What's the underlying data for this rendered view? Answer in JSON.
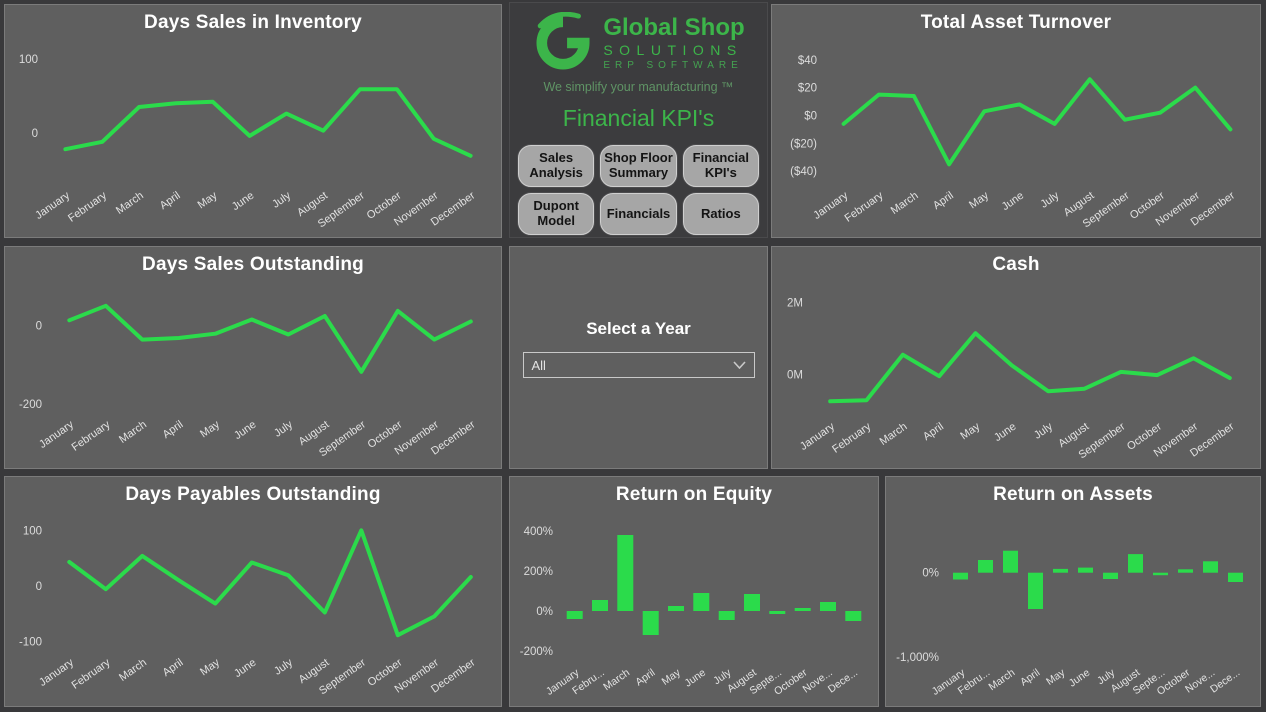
{
  "brand": {
    "monogram": "G",
    "name_line1": "Global Shop",
    "name_line2": "SOLUTIONS",
    "name_line3": "ERP SOFTWARE",
    "tagline": "We simplify your manufacturing ™",
    "green": "#3cb54a"
  },
  "page_title": "Financial KPI's",
  "nav": {
    "buttons": [
      "Sales Analysis",
      "Shop Floor Summary",
      "Financial KPI's",
      "Dupont Model",
      "Financials",
      "Ratios"
    ]
  },
  "filter": {
    "title": "Select a Year",
    "value": "All"
  },
  "chart_data": [
    {
      "id": "dsi",
      "type": "line",
      "title": "Days Sales in Inventory",
      "categories": [
        "January",
        "February",
        "March",
        "April",
        "May",
        "June",
        "July",
        "August",
        "September",
        "October",
        "November",
        "December"
      ],
      "values": [
        -22,
        -12,
        35,
        40,
        42,
        -4,
        26,
        3,
        59,
        59,
        -8,
        -31
      ],
      "y_ticks": [
        {
          "value": 100,
          "label": "100"
        },
        {
          "value": 0,
          "label": "0"
        }
      ],
      "ylim": [
        -65,
        112
      ],
      "grid": false,
      "color": "#2bdb4b"
    },
    {
      "id": "tat",
      "type": "line",
      "title": "Total Asset Turnover",
      "categories": [
        "January",
        "February",
        "March",
        "April",
        "May",
        "June",
        "July",
        "August",
        "September",
        "October",
        "November",
        "December"
      ],
      "values": [
        -6,
        15,
        14,
        -35,
        3,
        8,
        -6,
        26,
        -3,
        2,
        20,
        -10
      ],
      "y_ticks": [
        {
          "value": 40,
          "label": "$40"
        },
        {
          "value": 20,
          "label": "$20"
        },
        {
          "value": 0,
          "label": "$0"
        },
        {
          "value": -20,
          "label": "($20)"
        },
        {
          "value": -40,
          "label": "($40)"
        }
      ],
      "ylim": [
        -47,
        47
      ],
      "grid": false,
      "color": "#2bdb4b"
    },
    {
      "id": "dso",
      "type": "line",
      "title": "Days Sales Outstanding",
      "categories": [
        "January",
        "February",
        "March",
        "April",
        "May",
        "June",
        "July",
        "August",
        "September",
        "October",
        "November",
        "December"
      ],
      "values": [
        13,
        50,
        -36,
        -32,
        -21,
        15,
        -23,
        24,
        -118,
        37,
        -36,
        10
      ],
      "y_ticks": [
        {
          "value": 0,
          "label": "0"
        },
        {
          "value": -200,
          "label": "-200"
        }
      ],
      "ylim": [
        -215,
        85
      ],
      "grid": false,
      "color": "#2bdb4b"
    },
    {
      "id": "cash",
      "type": "line",
      "title": "Cash",
      "categories": [
        "January",
        "February",
        "March",
        "April",
        "May",
        "June",
        "July",
        "August",
        "September",
        "October",
        "November",
        "December"
      ],
      "values": [
        -0.75,
        -0.72,
        0.55,
        -0.05,
        1.15,
        0.25,
        -0.47,
        -0.4,
        0.07,
        -0.02,
        0.45,
        -0.1
      ],
      "y_ticks": [
        {
          "value": 2,
          "label": "2M"
        },
        {
          "value": 0,
          "label": "0M"
        }
      ],
      "ylim": [
        -1.05,
        2.3
      ],
      "grid": false,
      "color": "#2bdb4b"
    },
    {
      "id": "dpo",
      "type": "line",
      "title": "Days Payables Outstanding",
      "categories": [
        "January",
        "February",
        "March",
        "April",
        "May",
        "June",
        "July",
        "August",
        "September",
        "October",
        "November",
        "December"
      ],
      "values": [
        43,
        -6,
        54,
        10,
        -32,
        42,
        19,
        -48,
        100,
        -89,
        -55,
        16
      ],
      "y_ticks": [
        {
          "value": 100,
          "label": "100"
        },
        {
          "value": 0,
          "label": "0"
        },
        {
          "value": -100,
          "label": "-100"
        }
      ],
      "ylim": [
        -112,
        115
      ],
      "grid": false,
      "color": "#2bdb4b"
    },
    {
      "id": "roe",
      "type": "bar",
      "title": "Return on Equity",
      "categories": [
        "January",
        "Febru...",
        "March",
        "April",
        "May",
        "June",
        "July",
        "August",
        "Septe...",
        "October",
        "Nove...",
        "Dece..."
      ],
      "values": [
        -40,
        55,
        380,
        -120,
        25,
        90,
        -45,
        85,
        -15,
        15,
        45,
        -50
      ],
      "y_ticks": [
        {
          "value": 400,
          "label": "400%"
        },
        {
          "value": 200,
          "label": "200%"
        },
        {
          "value": 0,
          "label": "0%"
        },
        {
          "value": -200,
          "label": "-200%"
        }
      ],
      "ylim": [
        -235,
        445
      ],
      "grid": false,
      "color": "#2bdb4b",
      "unit": "%"
    },
    {
      "id": "roa",
      "type": "bar",
      "title": "Return on Assets",
      "categories": [
        "January",
        "Febru...",
        "March",
        "April",
        "May",
        "June",
        "July",
        "August",
        "Septe...",
        "October",
        "Nove...",
        "Dece..."
      ],
      "values": [
        -80,
        150,
        260,
        -430,
        45,
        60,
        -75,
        220,
        -30,
        40,
        135,
        -110
      ],
      "y_ticks": [
        {
          "value": 0,
          "label": "0%"
        },
        {
          "value": -1000,
          "label": "-1,000%"
        }
      ],
      "ylim": [
        -1010,
        600
      ],
      "grid": false,
      "color": "#2bdb4b",
      "unit": "%"
    }
  ]
}
